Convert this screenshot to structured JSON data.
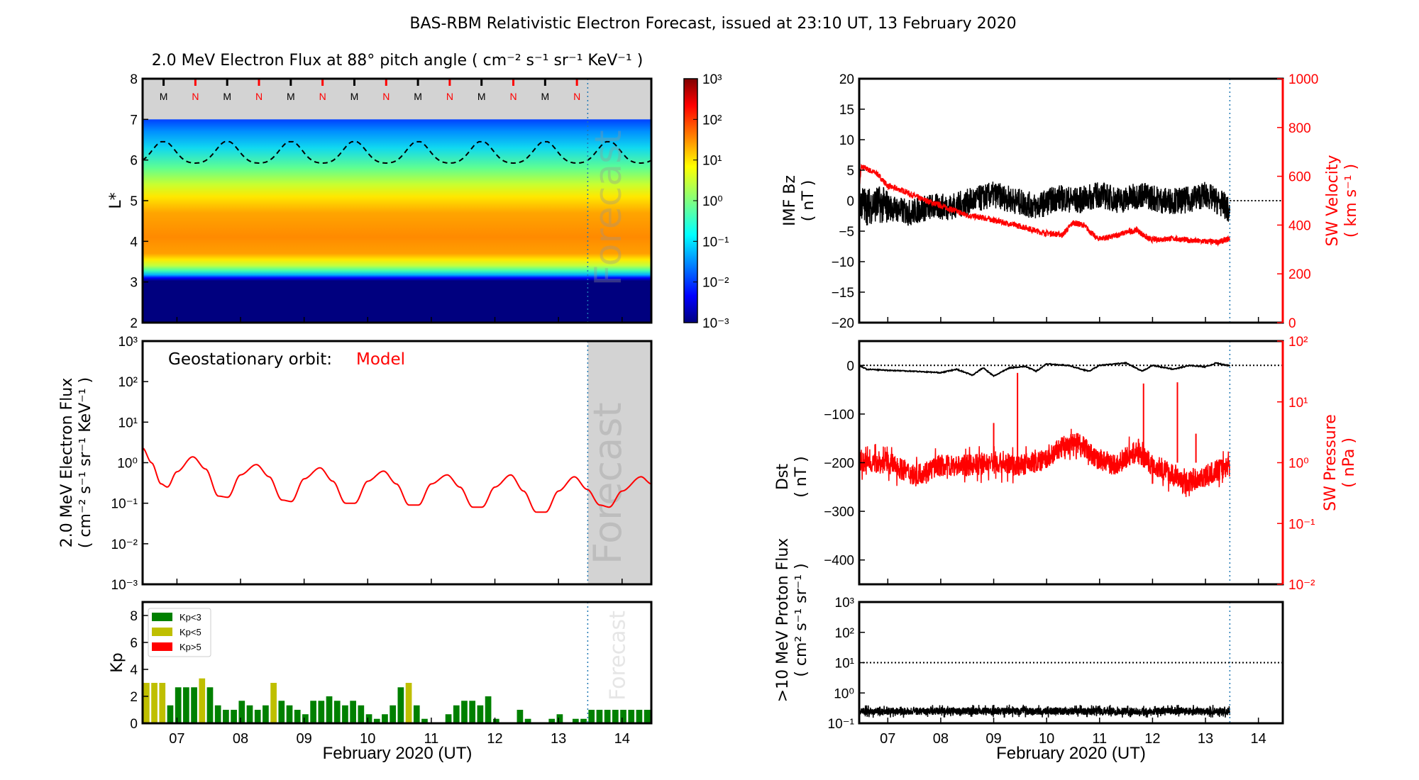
{
  "title": "BAS-RBM Relativistic Electron Forecast, issued at 23:10 UT, 13 February 2020",
  "forecast_label": "Forecast",
  "xlabel": "February 2020 (UT)",
  "x_ticks": [
    "07",
    "08",
    "09",
    "10",
    "11",
    "12",
    "13",
    "14"
  ],
  "x_range": [
    6.46,
    14.46
  ],
  "forecast_start": 13.46,
  "colors": {
    "accent_red": "#ff0000",
    "kp_green": "#008000",
    "kp_yellow": "#bfbf00",
    "forecast_line": "#1f77b4",
    "gray": "#d3d3d3"
  },
  "chart_data": [
    {
      "type": "heatmap",
      "title": "2.0 MeV Electron Flux at 88° pitch angle ( cm⁻² s⁻¹ sr⁻¹ KeV⁻¹ )",
      "ylabel": "L*",
      "ylim": [
        2,
        8
      ],
      "y_ticks": [
        "2",
        "3",
        "4",
        "5",
        "6",
        "7",
        "8"
      ],
      "colorbar_ticks": [
        "10⁻³",
        "10⁻²",
        "10⁻¹",
        "10⁰",
        "10¹",
        "10²",
        "10³"
      ],
      "colorbar_range_log10": [
        -3,
        3
      ],
      "markers": {
        "M_label": "M",
        "N_label": "N",
        "M_days": [
          6.79,
          7.79,
          8.79,
          9.79,
          10.79,
          11.79,
          12.79
        ],
        "N_days": [
          7.29,
          8.29,
          9.29,
          10.29,
          11.29,
          12.29,
          13.29
        ]
      },
      "model_max_L": 7,
      "boundary_curve": {
        "mean_L": 6.15,
        "amplitude_L": 0.3,
        "peak_day": 6.79
      }
    },
    {
      "type": "line",
      "annotation_label": "Geostationary orbit:",
      "annotation_value": "Model",
      "ylabel": "2.0 MeV Electron Flux",
      "ylabel_units": "( cm⁻² s⁻¹ sr⁻¹ KeV⁻¹ )",
      "yscale": "log",
      "ylim": [
        0.001,
        1000
      ],
      "y_ticks": [
        "10⁻³",
        "10⁻²",
        "10⁻¹",
        "10⁰",
        "10¹",
        "10²",
        "10³"
      ],
      "x": [
        6.46,
        6.6,
        6.75,
        6.85,
        7.0,
        7.25,
        7.45,
        7.65,
        7.8,
        8.0,
        8.25,
        8.45,
        8.65,
        8.8,
        9.0,
        9.25,
        9.45,
        9.65,
        9.8,
        10.0,
        10.25,
        10.45,
        10.65,
        10.8,
        11.0,
        11.25,
        11.45,
        11.65,
        11.8,
        12.0,
        12.25,
        12.45,
        12.65,
        12.8,
        13.0,
        13.25,
        13.45,
        13.65,
        13.8,
        14.0,
        14.3,
        14.46
      ],
      "y": [
        2.3,
        1.0,
        0.3,
        0.25,
        0.6,
        1.4,
        0.7,
        0.15,
        0.14,
        0.5,
        0.9,
        0.45,
        0.12,
        0.11,
        0.4,
        0.75,
        0.35,
        0.1,
        0.1,
        0.35,
        0.62,
        0.3,
        0.09,
        0.09,
        0.3,
        0.5,
        0.25,
        0.08,
        0.08,
        0.25,
        0.5,
        0.2,
        0.06,
        0.06,
        0.2,
        0.45,
        0.22,
        0.09,
        0.08,
        0.2,
        0.45,
        0.3
      ]
    },
    {
      "type": "bar",
      "ylabel": "Kp",
      "ylim": [
        0,
        9
      ],
      "y_ticks": [
        "0",
        "2",
        "4",
        "6",
        "8"
      ],
      "bin_width_days": 0.125,
      "legend": [
        {
          "label": "Kp<3",
          "color": "#008000"
        },
        {
          "label": "Kp<5",
          "color": "#bfbf00"
        },
        {
          "label": "Kp>5",
          "color": "#ff0000"
        }
      ],
      "legend_placement": "top-left",
      "values": [
        3,
        3,
        3,
        1.33,
        2.67,
        2.67,
        2.67,
        3.33,
        2.67,
        1.33,
        1,
        1,
        1.67,
        1.33,
        1,
        1.33,
        3,
        1.67,
        1.33,
        1,
        0.67,
        1.67,
        1.67,
        2,
        1.67,
        1.33,
        1.67,
        1.33,
        0.67,
        0.33,
        0.67,
        1.33,
        2.67,
        3,
        1.33,
        0.33,
        0,
        0,
        0.67,
        1.33,
        1.67,
        1.67,
        1.33,
        2,
        0.33,
        0,
        0,
        1,
        0.33,
        0,
        0,
        0.33,
        0.67,
        0,
        0.33,
        0.33,
        1,
        1,
        1,
        1,
        1,
        1,
        1,
        1
      ]
    },
    {
      "type": "line",
      "ylabel": "IMF Bz",
      "ylabel_units": "( nT )",
      "ylim": [
        -20,
        20
      ],
      "y_ticks": [
        "-20",
        "-15",
        "-10",
        "-5",
        "0",
        "5",
        "10",
        "15",
        "20"
      ],
      "y2label": "SW Velocity",
      "y2label_units": "( km s⁻¹ )",
      "y2lim": [
        0,
        1000
      ],
      "y2_ticks": [
        "0",
        "200",
        "400",
        "600",
        "800",
        "1000"
      ],
      "bz": {
        "x": [
          6.46,
          6.6,
          6.8,
          7.0,
          7.4,
          7.8,
          8.2,
          8.6,
          9.0,
          9.4,
          9.8,
          10.2,
          10.6,
          11.0,
          11.4,
          11.8,
          12.2,
          12.6,
          13.0,
          13.4,
          13.46
        ],
        "y": [
          0,
          -1,
          -0.5,
          -1,
          -2,
          -1,
          -1,
          0,
          1,
          0,
          -1,
          0.5,
          0,
          1,
          0,
          1,
          0,
          0,
          1,
          -1,
          -2.5
        ],
        "noise": 2.2
      },
      "velocity": {
        "x": [
          6.46,
          6.5,
          6.8,
          7.0,
          7.3,
          7.6,
          8.0,
          8.5,
          8.8,
          9.2,
          9.6,
          9.9,
          10.3,
          10.5,
          10.7,
          10.95,
          11.2,
          11.5,
          11.7,
          11.95,
          12.4,
          12.8,
          13.25,
          13.46
        ],
        "y": [
          550,
          640,
          610,
          560,
          540,
          510,
          480,
          440,
          430,
          410,
          390,
          370,
          360,
          410,
          400,
          345,
          350,
          370,
          380,
          340,
          345,
          335,
          330,
          345
        ],
        "noise": 12
      }
    },
    {
      "type": "line",
      "ylabel": "Dst",
      "ylabel_units": "( nT )",
      "ylim": [
        -450,
        50
      ],
      "y_ticks": [
        "-400",
        "-300",
        "-200",
        "-100",
        "0"
      ],
      "y2label": "SW Pressure",
      "y2label_units": "( nPa )",
      "y2lim": [
        0.01,
        100
      ],
      "y2_ticks": [
        "10⁻²",
        "10⁻¹",
        "10⁰",
        "10¹",
        "10²"
      ],
      "dst": {
        "x": [
          6.46,
          6.6,
          7.0,
          7.5,
          8.0,
          8.3,
          8.6,
          8.8,
          9.0,
          9.3,
          9.6,
          9.8,
          10.0,
          10.4,
          10.8,
          11.0,
          11.5,
          11.8,
          12.0,
          12.4,
          12.7,
          13.0,
          13.2,
          13.4
        ],
        "y": [
          0,
          -8,
          -10,
          -12,
          -15,
          -8,
          -20,
          -5,
          -22,
          -5,
          -2,
          -12,
          3,
          0,
          -12,
          0,
          5,
          -12,
          0,
          -8,
          0,
          -3,
          5,
          0
        ]
      },
      "pressure": {
        "x": [
          6.46,
          7.0,
          7.5,
          8.0,
          8.5,
          9.0,
          9.5,
          10.0,
          10.3,
          10.6,
          10.9,
          11.3,
          11.7,
          12.0,
          12.3,
          12.6,
          13.0,
          13.46
        ],
        "y": [
          1.0,
          1.0,
          0.6,
          0.9,
          0.9,
          1.0,
          0.9,
          1.1,
          1.8,
          2.2,
          1.2,
          0.9,
          1.5,
          0.9,
          0.7,
          0.45,
          0.6,
          0.9
        ],
        "noise_log10": 0.18,
        "spikes": [
          {
            "x": 9.45,
            "y": 30
          },
          {
            "x": 11.83,
            "y": 20
          },
          {
            "x": 12.47,
            "y": 21
          },
          {
            "x": 9.0,
            "y": 4.5
          },
          {
            "x": 12.82,
            "y": 3
          }
        ]
      }
    },
    {
      "type": "line",
      "ylabel": ">10 MeV Proton Flux",
      "ylabel_units": "( cm² s⁻¹ sr⁻¹ )",
      "yscale": "log",
      "ylim": [
        0.1,
        1000
      ],
      "y_ticks": [
        "10⁻¹",
        "10⁰",
        "10¹",
        "10²",
        "10³"
      ],
      "threshold": 10,
      "baseline": 0.25,
      "noise_log10": 0.12
    }
  ]
}
